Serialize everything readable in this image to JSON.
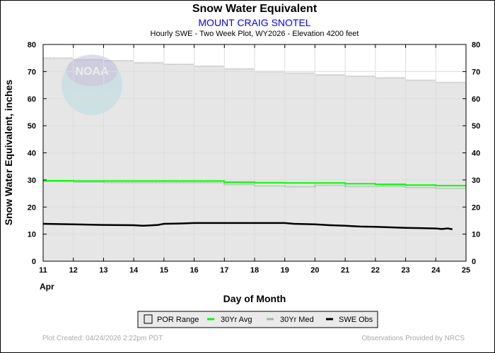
{
  "chart_data": {
    "type": "line",
    "title": "Snow Water Equivalent",
    "subtitle": "MOUNT CRAIG SNOTEL",
    "subtitle2": "Hourly SWE - Two Week Plot, WY2026 -  Elevation 4200 feet",
    "xlabel": "Day of Month",
    "xsublabel": "Apr",
    "ylabel": "Snow Water Equivalent, inches",
    "xlim": [
      11,
      25
    ],
    "ylim": [
      0,
      80
    ],
    "xticks": [
      "11",
      "12",
      "13",
      "14",
      "15",
      "16",
      "17",
      "18",
      "19",
      "20",
      "21",
      "22",
      "23",
      "24",
      "25"
    ],
    "yticks": [
      "0",
      "10",
      "20",
      "30",
      "40",
      "50",
      "60",
      "70",
      "80"
    ],
    "grid": true,
    "legend_position": "bottom",
    "series": [
      {
        "name": "POR Range",
        "color": "#e6e6e6",
        "days": [
          11,
          12,
          13,
          14,
          15,
          16,
          17,
          18,
          19,
          20,
          21,
          22,
          23,
          24
        ],
        "max": [
          75,
          74.4,
          74,
          73.3,
          72.7,
          72,
          71,
          70,
          69.4,
          68.8,
          68.3,
          67.7,
          66.8,
          66
        ],
        "min": [
          0,
          0,
          0,
          0,
          0,
          0,
          0,
          0,
          0,
          0,
          0,
          0,
          0,
          0
        ]
      },
      {
        "name": "30Yr Avg",
        "color": "#00ff00",
        "days": [
          11,
          12,
          13,
          14,
          15,
          16,
          17,
          18,
          19,
          20,
          21,
          22,
          23,
          24
        ],
        "values": [
          29.7,
          29.6,
          29.6,
          29.6,
          29.6,
          29.6,
          29.2,
          29.0,
          28.9,
          28.9,
          28.6,
          28.4,
          28.1,
          27.9
        ]
      },
      {
        "name": "30Yr Med",
        "color": "#9cb89c",
        "days": [
          11,
          12,
          13,
          14,
          15,
          16,
          17,
          18,
          19,
          20,
          21,
          22,
          23,
          24
        ],
        "values": [
          29.5,
          29.2,
          29.0,
          29.0,
          29.0,
          29.0,
          28.3,
          27.8,
          27.5,
          28.0,
          27.6,
          27.6,
          27.2,
          26.9
        ]
      },
      {
        "name": "SWE Obs",
        "color": "#000000",
        "x": [
          11,
          12,
          13,
          14,
          14.3,
          14.5,
          14.8,
          15,
          15.5,
          16,
          17,
          18,
          19,
          19.3,
          20,
          20.5,
          21,
          21.5,
          22,
          22.5,
          23,
          23.5,
          24,
          24.2,
          24.4,
          24.55
        ],
        "values": [
          13.8,
          13.6,
          13.4,
          13.3,
          13.1,
          13.2,
          13.4,
          13.8,
          13.9,
          14.1,
          14.1,
          14.1,
          14.1,
          13.8,
          13.6,
          13.3,
          13.1,
          12.8,
          12.7,
          12.5,
          12.3,
          12.2,
          12.1,
          11.9,
          12.1,
          11.8
        ]
      }
    ]
  },
  "footer": {
    "created": "Plot Created: 04/24/2026 2:22pm PDT",
    "credit": "Observations Provided by NRCS"
  },
  "watermark": "NOAA"
}
